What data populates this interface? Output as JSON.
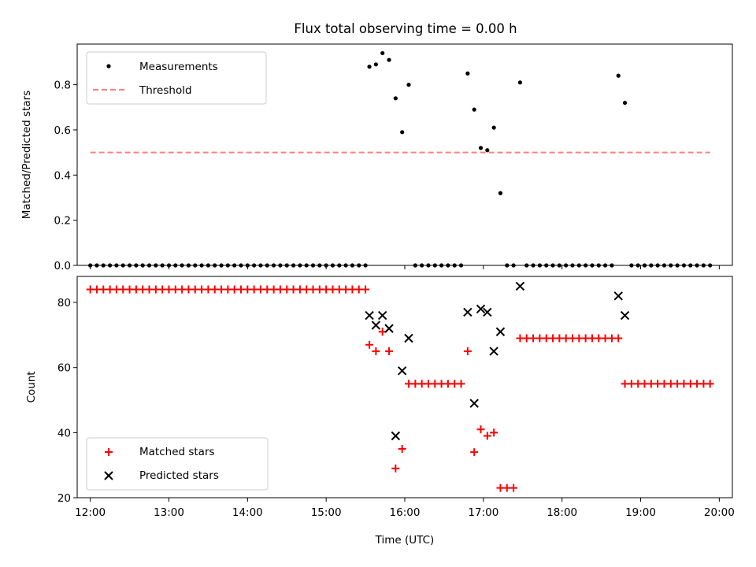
{
  "title": "Flux total observing time = 0.00 h",
  "chart_data": [
    {
      "type": "scatter",
      "ylabel": "Matched/Predicted stars",
      "xlabel": "",
      "xlim": [
        "11:50",
        "20:10"
      ],
      "ylim": [
        0,
        0.98
      ],
      "yticks": [
        0.0,
        0.2,
        0.4,
        0.6,
        0.8
      ],
      "ytick_labels": [
        "0.0",
        "0.2",
        "0.4",
        "0.6",
        "0.8"
      ],
      "xtick_labels": [],
      "legend_position": "upper left",
      "series": [
        {
          "name": "Measurements",
          "marker": "dot",
          "color": "#000000",
          "points": [
            [
              "12:00",
              0
            ],
            [
              "12:05",
              0
            ],
            [
              "12:10",
              0
            ],
            [
              "12:15",
              0
            ],
            [
              "12:20",
              0
            ],
            [
              "12:25",
              0
            ],
            [
              "12:30",
              0
            ],
            [
              "12:35",
              0
            ],
            [
              "12:40",
              0
            ],
            [
              "12:45",
              0
            ],
            [
              "12:50",
              0
            ],
            [
              "12:55",
              0
            ],
            [
              "13:00",
              0
            ],
            [
              "13:05",
              0
            ],
            [
              "13:10",
              0
            ],
            [
              "13:15",
              0
            ],
            [
              "13:20",
              0
            ],
            [
              "13:25",
              0
            ],
            [
              "13:30",
              0
            ],
            [
              "13:35",
              0
            ],
            [
              "13:40",
              0
            ],
            [
              "13:45",
              0
            ],
            [
              "13:50",
              0
            ],
            [
              "13:55",
              0
            ],
            [
              "14:00",
              0
            ],
            [
              "14:05",
              0
            ],
            [
              "14:10",
              0
            ],
            [
              "14:15",
              0
            ],
            [
              "14:20",
              0
            ],
            [
              "14:25",
              0
            ],
            [
              "14:30",
              0
            ],
            [
              "14:35",
              0
            ],
            [
              "14:40",
              0
            ],
            [
              "14:45",
              0
            ],
            [
              "14:50",
              0
            ],
            [
              "14:55",
              0
            ],
            [
              "15:00",
              0
            ],
            [
              "15:05",
              0
            ],
            [
              "15:10",
              0
            ],
            [
              "15:15",
              0
            ],
            [
              "15:20",
              0
            ],
            [
              "15:25",
              0
            ],
            [
              "15:30",
              0
            ],
            [
              "15:33",
              0.88
            ],
            [
              "15:38",
              0.89
            ],
            [
              "15:43",
              0.94
            ],
            [
              "15:48",
              0.91
            ],
            [
              "15:53",
              0.74
            ],
            [
              "15:58",
              0.59
            ],
            [
              "16:03",
              0.8
            ],
            [
              "16:08",
              0
            ],
            [
              "16:13",
              0
            ],
            [
              "16:18",
              0
            ],
            [
              "16:23",
              0
            ],
            [
              "16:28",
              0
            ],
            [
              "16:33",
              0
            ],
            [
              "16:38",
              0
            ],
            [
              "16:43",
              0
            ],
            [
              "16:48",
              0.85
            ],
            [
              "16:53",
              0.69
            ],
            [
              "16:58",
              0.52
            ],
            [
              "17:03",
              0.51
            ],
            [
              "17:08",
              0.61
            ],
            [
              "17:13",
              0.32
            ],
            [
              "17:18",
              0
            ],
            [
              "17:23",
              0
            ],
            [
              "17:28",
              0.81
            ],
            [
              "17:33",
              0
            ],
            [
              "17:38",
              0
            ],
            [
              "17:43",
              0
            ],
            [
              "17:48",
              0
            ],
            [
              "17:53",
              0
            ],
            [
              "17:58",
              0
            ],
            [
              "18:03",
              0
            ],
            [
              "18:08",
              0
            ],
            [
              "18:13",
              0
            ],
            [
              "18:18",
              0
            ],
            [
              "18:23",
              0
            ],
            [
              "18:28",
              0
            ],
            [
              "18:33",
              0
            ],
            [
              "18:38",
              0
            ],
            [
              "18:43",
              0.84
            ],
            [
              "18:48",
              0.72
            ],
            [
              "18:53",
              0
            ],
            [
              "18:58",
              0
            ],
            [
              "19:03",
              0
            ],
            [
              "19:08",
              0
            ],
            [
              "19:13",
              0
            ],
            [
              "19:18",
              0
            ],
            [
              "19:23",
              0
            ],
            [
              "19:28",
              0
            ],
            [
              "19:33",
              0
            ],
            [
              "19:38",
              0
            ],
            [
              "19:43",
              0
            ],
            [
              "19:48",
              0
            ],
            [
              "19:53",
              0
            ]
          ]
        },
        {
          "name": "Threshold",
          "style": "dashed-line",
          "color": "#ff8080",
          "points": [
            [
              "12:00",
              0.5
            ],
            [
              "19:53",
              0.5
            ]
          ]
        }
      ]
    },
    {
      "type": "scatter",
      "ylabel": "Count",
      "xlabel": "Time (UTC)",
      "xlim": [
        "11:50",
        "20:10"
      ],
      "ylim": [
        20,
        88
      ],
      "yticks": [
        20,
        40,
        60,
        80
      ],
      "ytick_labels": [
        "20",
        "40",
        "60",
        "80"
      ],
      "xtick_labels": [
        "12:00",
        "13:00",
        "14:00",
        "15:00",
        "16:00",
        "17:00",
        "18:00",
        "19:00",
        "20:00"
      ],
      "legend_position": "lower left",
      "series": [
        {
          "name": "Matched stars",
          "marker": "plus",
          "color": "#ff0000",
          "points": [
            [
              "12:00",
              84
            ],
            [
              "12:05",
              84
            ],
            [
              "12:10",
              84
            ],
            [
              "12:15",
              84
            ],
            [
              "12:20",
              84
            ],
            [
              "12:25",
              84
            ],
            [
              "12:30",
              84
            ],
            [
              "12:35",
              84
            ],
            [
              "12:40",
              84
            ],
            [
              "12:45",
              84
            ],
            [
              "12:50",
              84
            ],
            [
              "12:55",
              84
            ],
            [
              "13:00",
              84
            ],
            [
              "13:05",
              84
            ],
            [
              "13:10",
              84
            ],
            [
              "13:15",
              84
            ],
            [
              "13:20",
              84
            ],
            [
              "13:25",
              84
            ],
            [
              "13:30",
              84
            ],
            [
              "13:35",
              84
            ],
            [
              "13:40",
              84
            ],
            [
              "13:45",
              84
            ],
            [
              "13:50",
              84
            ],
            [
              "13:55",
              84
            ],
            [
              "14:00",
              84
            ],
            [
              "14:05",
              84
            ],
            [
              "14:10",
              84
            ],
            [
              "14:15",
              84
            ],
            [
              "14:20",
              84
            ],
            [
              "14:25",
              84
            ],
            [
              "14:30",
              84
            ],
            [
              "14:35",
              84
            ],
            [
              "14:40",
              84
            ],
            [
              "14:45",
              84
            ],
            [
              "14:50",
              84
            ],
            [
              "14:55",
              84
            ],
            [
              "15:00",
              84
            ],
            [
              "15:05",
              84
            ],
            [
              "15:10",
              84
            ],
            [
              "15:15",
              84
            ],
            [
              "15:20",
              84
            ],
            [
              "15:25",
              84
            ],
            [
              "15:30",
              84
            ],
            [
              "15:33",
              67
            ],
            [
              "15:38",
              65
            ],
            [
              "15:43",
              71
            ],
            [
              "15:48",
              65
            ],
            [
              "15:53",
              29
            ],
            [
              "15:58",
              35
            ],
            [
              "16:03",
              55
            ],
            [
              "16:08",
              55
            ],
            [
              "16:13",
              55
            ],
            [
              "16:18",
              55
            ],
            [
              "16:23",
              55
            ],
            [
              "16:28",
              55
            ],
            [
              "16:33",
              55
            ],
            [
              "16:38",
              55
            ],
            [
              "16:43",
              55
            ],
            [
              "16:48",
              65
            ],
            [
              "16:53",
              34
            ],
            [
              "16:58",
              41
            ],
            [
              "17:03",
              39
            ],
            [
              "17:08",
              40
            ],
            [
              "17:13",
              23
            ],
            [
              "17:18",
              23
            ],
            [
              "17:23",
              23
            ],
            [
              "17:28",
              69
            ],
            [
              "17:33",
              69
            ],
            [
              "17:38",
              69
            ],
            [
              "17:43",
              69
            ],
            [
              "17:48",
              69
            ],
            [
              "17:53",
              69
            ],
            [
              "17:58",
              69
            ],
            [
              "18:03",
              69
            ],
            [
              "18:08",
              69
            ],
            [
              "18:13",
              69
            ],
            [
              "18:18",
              69
            ],
            [
              "18:23",
              69
            ],
            [
              "18:28",
              69
            ],
            [
              "18:33",
              69
            ],
            [
              "18:38",
              69
            ],
            [
              "18:43",
              69
            ],
            [
              "18:48",
              55
            ],
            [
              "18:53",
              55
            ],
            [
              "18:58",
              55
            ],
            [
              "19:03",
              55
            ],
            [
              "19:08",
              55
            ],
            [
              "19:13",
              55
            ],
            [
              "19:18",
              55
            ],
            [
              "19:23",
              55
            ],
            [
              "19:28",
              55
            ],
            [
              "19:33",
              55
            ],
            [
              "19:38",
              55
            ],
            [
              "19:43",
              55
            ],
            [
              "19:48",
              55
            ],
            [
              "19:53",
              55
            ]
          ]
        },
        {
          "name": "Predicted stars",
          "marker": "x",
          "color": "#000000",
          "points": [
            [
              "15:33",
              76
            ],
            [
              "15:38",
              73
            ],
            [
              "15:43",
              76
            ],
            [
              "15:48",
              72
            ],
            [
              "15:53",
              39
            ],
            [
              "15:58",
              59
            ],
            [
              "16:03",
              69
            ],
            [
              "16:48",
              77
            ],
            [
              "16:53",
              49
            ],
            [
              "16:58",
              78
            ],
            [
              "17:03",
              77
            ],
            [
              "17:08",
              65
            ],
            [
              "17:13",
              71
            ],
            [
              "17:28",
              85
            ],
            [
              "18:43",
              82
            ],
            [
              "18:48",
              76
            ]
          ]
        }
      ]
    }
  ]
}
